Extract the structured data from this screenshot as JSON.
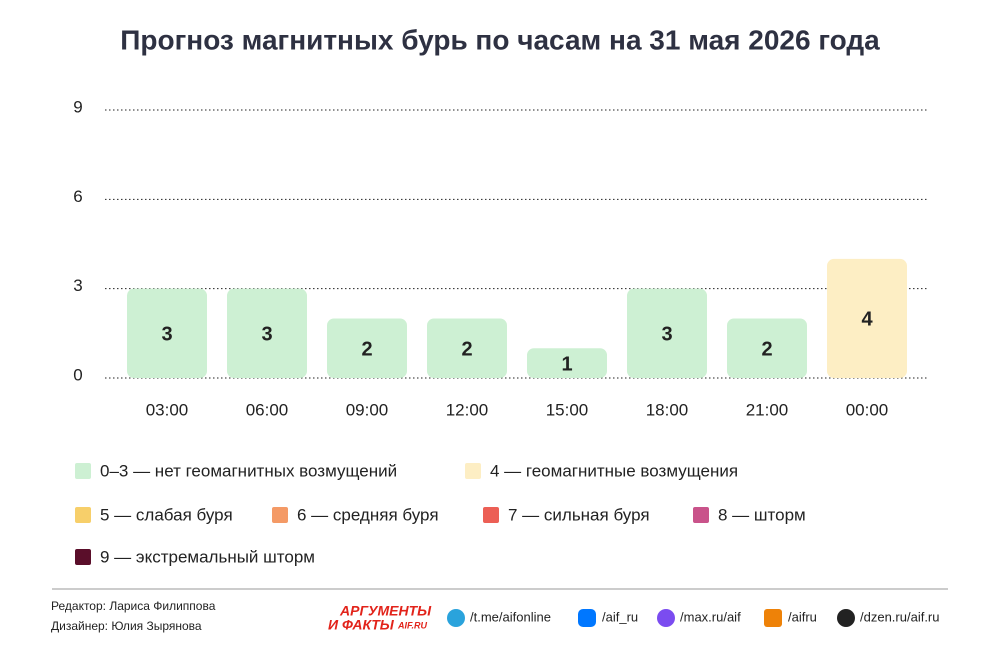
{
  "chart_data": {
    "type": "bar",
    "title": "Прогноз магнитных бурь по часам на 31 мая 2026 года",
    "categories": [
      "03:00",
      "06:00",
      "09:00",
      "12:00",
      "15:00",
      "18:00",
      "21:00",
      "00:00"
    ],
    "values": [
      3,
      3,
      2,
      2,
      1,
      3,
      2,
      4
    ],
    "colors": [
      "#cdf0d3",
      "#cdf0d3",
      "#cdf0d3",
      "#cdf0d3",
      "#cdf0d3",
      "#cdf0d3",
      "#cdf0d3",
      "#fdeec4"
    ],
    "ylim": [
      0,
      9
    ],
    "yticks": [
      0,
      3,
      6,
      9
    ],
    "grid": true,
    "legend": [
      {
        "label": "0–3 — нет геомагнитных возмущений",
        "color": "#cdf0d3"
      },
      {
        "label": "4 — геомагнитные возмущения",
        "color": "#fdeec4"
      },
      {
        "label": "5 — слабая буря",
        "color": "#f7cf6a"
      },
      {
        "label": "6 — средняя буря",
        "color": "#f49a66"
      },
      {
        "label": "7 — сильная буря",
        "color": "#ec5f55"
      },
      {
        "label": "8 — шторм",
        "color": "#c9538a"
      },
      {
        "label": "9 — экстремальный шторм",
        "color": "#5a0e2a"
      }
    ]
  },
  "footer": {
    "editor": "Редактор: Лариса Филиппова",
    "designer": "Дизайнер: Юлия Зырянова",
    "logo": [
      "АРГУМЕНТЫ",
      "И ФАКТЫ",
      "AIF.RU"
    ],
    "links": [
      "/t.me/aifonline",
      "/aif_ru",
      "/max.ru/aif",
      "/aifru",
      "/dzen.ru/aif.ru"
    ]
  }
}
